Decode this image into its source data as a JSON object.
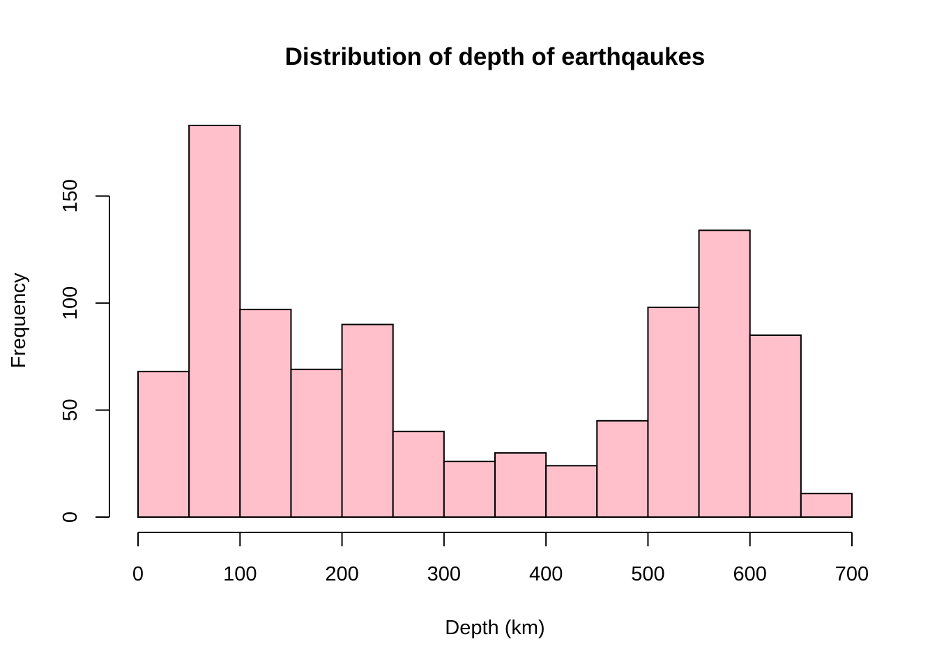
{
  "chart_data": {
    "type": "bar",
    "title": "Distribution of depth of earthqaukes",
    "xlabel": "Depth (km)",
    "ylabel": "Frequency",
    "bin_edges": [
      0,
      50,
      100,
      150,
      200,
      250,
      300,
      350,
      400,
      450,
      500,
      550,
      600,
      650,
      700
    ],
    "values": [
      68,
      183,
      97,
      69,
      90,
      40,
      26,
      30,
      24,
      45,
      98,
      134,
      85,
      11
    ],
    "xlim": [
      0,
      700
    ],
    "ylim": [
      0,
      183
    ],
    "x_ticks": [
      0,
      100,
      200,
      300,
      400,
      500,
      600,
      700
    ],
    "y_ticks": [
      0,
      50,
      100,
      150
    ],
    "bar_color": "#ffc0cb",
    "grid": false
  }
}
